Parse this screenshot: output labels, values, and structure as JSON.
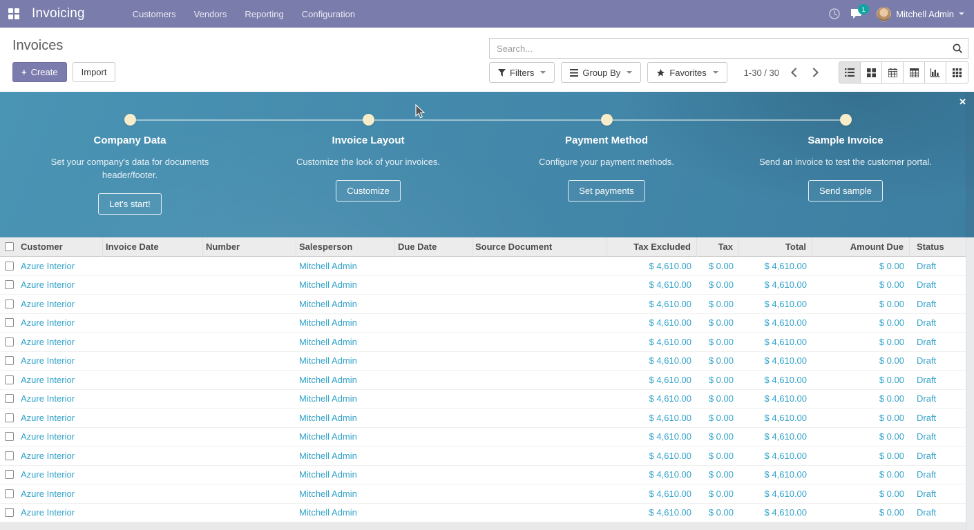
{
  "colors": {
    "topbar_purple": "#7a7cab",
    "accent_purple": "#7c7bad",
    "link_blue": "#31a2c9",
    "banner_blue_start": "#4a94b4",
    "banner_blue_end": "#3d7fa2",
    "step_dot": "#f7ecca",
    "badge_teal": "#12a5a0"
  },
  "topbar": {
    "brand": "Invoicing",
    "menus": [
      {
        "label": "Customers"
      },
      {
        "label": "Vendors"
      },
      {
        "label": "Reporting"
      },
      {
        "label": "Configuration"
      }
    ],
    "message_badge": "1",
    "user_name": "Mitchell Admin"
  },
  "control": {
    "title": "Invoices",
    "create_label": "Create",
    "create_plus": "+",
    "import_label": "Import",
    "search_placeholder": "Search...",
    "filters_label": "Filters",
    "group_by_label": "Group By",
    "favorites_label": "Favorites",
    "pager_text": "1-30 / 30"
  },
  "banner": {
    "close_glyph": "✕",
    "steps": [
      {
        "title": "Company Data",
        "desc": "Set your company's data for documents header/footer.",
        "button": "Let's start!"
      },
      {
        "title": "Invoice Layout",
        "desc": "Customize the look of your invoices.",
        "button": "Customize"
      },
      {
        "title": "Payment Method",
        "desc": "Configure your payment methods.",
        "button": "Set payments"
      },
      {
        "title": "Sample Invoice",
        "desc": "Send an invoice to test the customer portal.",
        "button": "Send sample"
      }
    ]
  },
  "table": {
    "columns": [
      {
        "key": "customer",
        "label": "Customer",
        "align": "left"
      },
      {
        "key": "invoice_date",
        "label": "Invoice Date",
        "align": "left"
      },
      {
        "key": "number",
        "label": "Number",
        "align": "left"
      },
      {
        "key": "salesperson",
        "label": "Salesperson",
        "align": "left"
      },
      {
        "key": "due_date",
        "label": "Due Date",
        "align": "left"
      },
      {
        "key": "source_document",
        "label": "Source Document",
        "align": "left"
      },
      {
        "key": "tax_excluded",
        "label": "Tax Excluded",
        "align": "right"
      },
      {
        "key": "tax",
        "label": "Tax",
        "align": "right"
      },
      {
        "key": "total",
        "label": "Total",
        "align": "right"
      },
      {
        "key": "amount_due",
        "label": "Amount Due",
        "align": "right"
      },
      {
        "key": "status",
        "label": "Status",
        "align": "left"
      }
    ],
    "rows": [
      {
        "customer": "Azure Interior",
        "invoice_date": "",
        "number": "",
        "salesperson": "Mitchell Admin",
        "due_date": "",
        "source_document": "",
        "tax_excluded": "$ 4,610.00",
        "tax": "$ 0.00",
        "total": "$ 4,610.00",
        "amount_due": "$ 0.00",
        "status": "Draft"
      },
      {
        "customer": "Azure Interior",
        "invoice_date": "",
        "number": "",
        "salesperson": "Mitchell Admin",
        "due_date": "",
        "source_document": "",
        "tax_excluded": "$ 4,610.00",
        "tax": "$ 0.00",
        "total": "$ 4,610.00",
        "amount_due": "$ 0.00",
        "status": "Draft"
      },
      {
        "customer": "Azure Interior",
        "invoice_date": "",
        "number": "",
        "salesperson": "Mitchell Admin",
        "due_date": "",
        "source_document": "",
        "tax_excluded": "$ 4,610.00",
        "tax": "$ 0.00",
        "total": "$ 4,610.00",
        "amount_due": "$ 0.00",
        "status": "Draft"
      },
      {
        "customer": "Azure Interior",
        "invoice_date": "",
        "number": "",
        "salesperson": "Mitchell Admin",
        "due_date": "",
        "source_document": "",
        "tax_excluded": "$ 4,610.00",
        "tax": "$ 0.00",
        "total": "$ 4,610.00",
        "amount_due": "$ 0.00",
        "status": "Draft"
      },
      {
        "customer": "Azure Interior",
        "invoice_date": "",
        "number": "",
        "salesperson": "Mitchell Admin",
        "due_date": "",
        "source_document": "",
        "tax_excluded": "$ 4,610.00",
        "tax": "$ 0.00",
        "total": "$ 4,610.00",
        "amount_due": "$ 0.00",
        "status": "Draft"
      },
      {
        "customer": "Azure Interior",
        "invoice_date": "",
        "number": "",
        "salesperson": "Mitchell Admin",
        "due_date": "",
        "source_document": "",
        "tax_excluded": "$ 4,610.00",
        "tax": "$ 0.00",
        "total": "$ 4,610.00",
        "amount_due": "$ 0.00",
        "status": "Draft"
      },
      {
        "customer": "Azure Interior",
        "invoice_date": "",
        "number": "",
        "salesperson": "Mitchell Admin",
        "due_date": "",
        "source_document": "",
        "tax_excluded": "$ 4,610.00",
        "tax": "$ 0.00",
        "total": "$ 4,610.00",
        "amount_due": "$ 0.00",
        "status": "Draft"
      },
      {
        "customer": "Azure Interior",
        "invoice_date": "",
        "number": "",
        "salesperson": "Mitchell Admin",
        "due_date": "",
        "source_document": "",
        "tax_excluded": "$ 4,610.00",
        "tax": "$ 0.00",
        "total": "$ 4,610.00",
        "amount_due": "$ 0.00",
        "status": "Draft"
      },
      {
        "customer": "Azure Interior",
        "invoice_date": "",
        "number": "",
        "salesperson": "Mitchell Admin",
        "due_date": "",
        "source_document": "",
        "tax_excluded": "$ 4,610.00",
        "tax": "$ 0.00",
        "total": "$ 4,610.00",
        "amount_due": "$ 0.00",
        "status": "Draft"
      },
      {
        "customer": "Azure Interior",
        "invoice_date": "",
        "number": "",
        "salesperson": "Mitchell Admin",
        "due_date": "",
        "source_document": "",
        "tax_excluded": "$ 4,610.00",
        "tax": "$ 0.00",
        "total": "$ 4,610.00",
        "amount_due": "$ 0.00",
        "status": "Draft"
      },
      {
        "customer": "Azure Interior",
        "invoice_date": "",
        "number": "",
        "salesperson": "Mitchell Admin",
        "due_date": "",
        "source_document": "",
        "tax_excluded": "$ 4,610.00",
        "tax": "$ 0.00",
        "total": "$ 4,610.00",
        "amount_due": "$ 0.00",
        "status": "Draft"
      },
      {
        "customer": "Azure Interior",
        "invoice_date": "",
        "number": "",
        "salesperson": "Mitchell Admin",
        "due_date": "",
        "source_document": "",
        "tax_excluded": "$ 4,610.00",
        "tax": "$ 0.00",
        "total": "$ 4,610.00",
        "amount_due": "$ 0.00",
        "status": "Draft"
      },
      {
        "customer": "Azure Interior",
        "invoice_date": "",
        "number": "",
        "salesperson": "Mitchell Admin",
        "due_date": "",
        "source_document": "",
        "tax_excluded": "$ 4,610.00",
        "tax": "$ 0.00",
        "total": "$ 4,610.00",
        "amount_due": "$ 0.00",
        "status": "Draft"
      },
      {
        "customer": "Azure Interior",
        "invoice_date": "",
        "number": "",
        "salesperson": "Mitchell Admin",
        "due_date": "",
        "source_document": "",
        "tax_excluded": "$ 4,610.00",
        "tax": "$ 0.00",
        "total": "$ 4,610.00",
        "amount_due": "$ 0.00",
        "status": "Draft"
      }
    ]
  }
}
